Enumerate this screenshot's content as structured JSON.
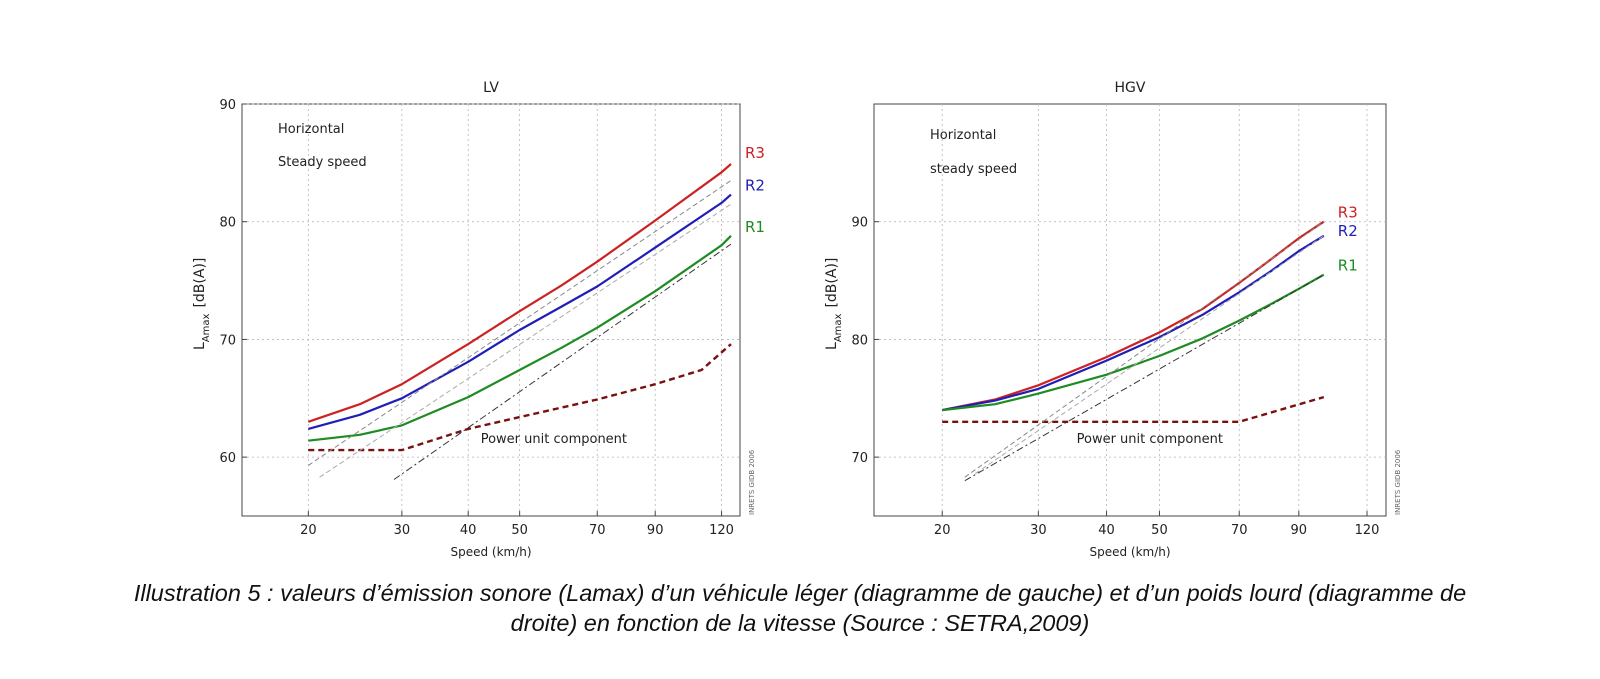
{
  "chart_data": [
    {
      "type": "line",
      "title": "LV",
      "xlabel": "Speed (km/h)",
      "ylabel_main": "L",
      "ylabel_sub": "Amax",
      "ylabel_unit": "[dB(A)]",
      "x_scale": "log",
      "xlim": [
        15,
        130
      ],
      "ylim": [
        55,
        90
      ],
      "x_ticks": [
        20,
        30,
        40,
        50,
        70,
        90,
        120
      ],
      "y_ticks": [
        60,
        70,
        80,
        90
      ],
      "grid": true,
      "annotations": [
        "Horizontal",
        "Steady speed"
      ],
      "component_label": "Power unit component",
      "watermark": "INRETS GIDB 2006",
      "series": [
        {
          "name": "R3",
          "color": "#cc2222",
          "style": "solid",
          "x": [
            20,
            25,
            30,
            40,
            50,
            60,
            70,
            90,
            120,
            125
          ],
          "y": [
            63,
            64.5,
            66.2,
            69.6,
            72.4,
            74.6,
            76.6,
            80.1,
            84.2,
            84.9
          ]
        },
        {
          "name": "R2",
          "color": "#1f1fb8",
          "style": "solid",
          "x": [
            20,
            25,
            30,
            40,
            50,
            60,
            70,
            90,
            120,
            125
          ],
          "y": [
            62.4,
            63.6,
            65,
            68.1,
            70.8,
            72.8,
            74.5,
            77.8,
            81.6,
            82.3
          ]
        },
        {
          "name": "R1",
          "color": "#1e8c22",
          "style": "solid",
          "x": [
            20,
            25,
            30,
            40,
            50,
            60,
            70,
            90,
            120,
            125
          ],
          "y": [
            61.4,
            61.9,
            62.7,
            65.1,
            67.4,
            69.3,
            71,
            74.1,
            78,
            78.8
          ]
        },
        {
          "name": "",
          "color": "#7a1010",
          "style": "dashed-bold",
          "x": [
            20,
            30,
            40,
            50,
            70,
            90,
            110,
            125
          ],
          "y": [
            60.6,
            60.6,
            62.4,
            63.4,
            64.9,
            66.2,
            67.4,
            69.6
          ]
        },
        {
          "name": "",
          "color": "#888888",
          "style": "dashed",
          "x": [
            20,
            125
          ],
          "y": [
            59.3,
            83.5
          ]
        },
        {
          "name": "",
          "color": "#aaaaaa",
          "style": "dashed",
          "x": [
            21,
            125
          ],
          "y": [
            58.3,
            81.5
          ]
        },
        {
          "name": "",
          "color": "#333333",
          "style": "dashdot",
          "x": [
            29,
            125
          ],
          "y": [
            58.1,
            78.1
          ]
        }
      ]
    },
    {
      "type": "line",
      "title": "HGV",
      "xlabel": "Speed (km/h)",
      "ylabel_main": "L",
      "ylabel_sub": "Amax",
      "ylabel_unit": "[dB(A)]",
      "x_scale": "log",
      "xlim": [
        15,
        130
      ],
      "ylim": [
        65,
        100
      ],
      "x_ticks": [
        20,
        30,
        40,
        50,
        70,
        90,
        120
      ],
      "y_ticks": [
        70,
        80,
        90
      ],
      "grid": true,
      "annotations": [
        "Horizontal",
        "steady speed"
      ],
      "component_label": "Power unit component",
      "watermark": "INRETS GIDB 2006",
      "series": [
        {
          "name": "R3",
          "color": "#cc2222",
          "style": "solid",
          "x": [
            20,
            25,
            30,
            40,
            50,
            60,
            70,
            80,
            90,
            100
          ],
          "y": [
            74,
            74.9,
            76.1,
            78.5,
            80.6,
            82.6,
            84.8,
            86.8,
            88.6,
            90
          ]
        },
        {
          "name": "R2",
          "color": "#1f1fb8",
          "style": "solid",
          "x": [
            20,
            25,
            30,
            40,
            50,
            60,
            70,
            80,
            90,
            100
          ],
          "y": [
            74,
            74.8,
            75.8,
            78.2,
            80.2,
            82.1,
            84,
            85.8,
            87.5,
            88.8
          ]
        },
        {
          "name": "R1",
          "color": "#1e8c22",
          "style": "solid",
          "x": [
            20,
            25,
            30,
            40,
            50,
            60,
            70,
            80,
            90,
            100
          ],
          "y": [
            74,
            74.5,
            75.4,
            77,
            78.6,
            80.1,
            81.6,
            83,
            84.3,
            85.5
          ]
        },
        {
          "name": "",
          "color": "#7a1010",
          "style": "dashed-bold",
          "x": [
            20,
            70,
            100
          ],
          "y": [
            73,
            73,
            75.1
          ]
        },
        {
          "name": "",
          "color": "#888888",
          "style": "dashed",
          "x": [
            22,
            100
          ],
          "y": [
            68.3,
            90
          ]
        },
        {
          "name": "",
          "color": "#aaaaaa",
          "style": "dashed",
          "x": [
            23,
            100
          ],
          "y": [
            68.6,
            88.8
          ]
        },
        {
          "name": "",
          "color": "#333333",
          "style": "dashdot",
          "x": [
            22,
            100
          ],
          "y": [
            68,
            85.5
          ]
        }
      ]
    }
  ],
  "caption": {
    "line1": "Illustration 5 : valeurs d’émission sonore (Lamax) d’un véhicule léger (diagramme de gauche) et d’un poids lourd (diagramme de",
    "line2": "droite) en fonction de la vitesse (Source : SETRA,2009)"
  }
}
